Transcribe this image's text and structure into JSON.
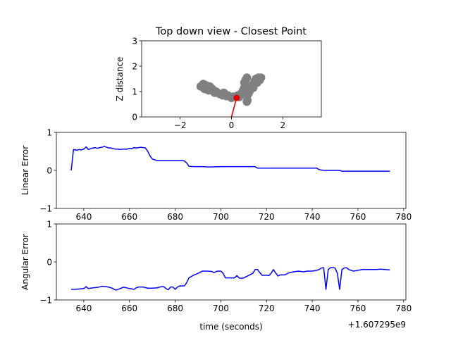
{
  "colors": {
    "trace": "#0000ff",
    "point_cloud": "#808080",
    "closest_point": "#e00000",
    "axes": "#000000",
    "background": "#ffffff"
  },
  "chart_data": [
    {
      "type": "scatter",
      "title": "Top down view - Closest Point",
      "xlabel": "",
      "ylabel": "Z distance",
      "xlim": [
        -3.5,
        3.5
      ],
      "ylim": [
        0,
        3
      ],
      "xticks": [
        -2,
        0,
        2
      ],
      "yticks": [
        0,
        1,
        2,
        3
      ],
      "xtick_labels": [
        "−2",
        "0",
        "2"
      ],
      "ytick_labels": [
        "0",
        "1",
        "2",
        "3"
      ],
      "grid": false,
      "series": [
        {
          "color": "#808080",
          "marker": "o",
          "points": [
            [
              -1.2,
              1.2
            ],
            [
              -1.1,
              1.3
            ],
            [
              -1.0,
              1.25
            ],
            [
              -0.95,
              1.15
            ],
            [
              -0.9,
              1.05
            ],
            [
              -1.05,
              1.1
            ],
            [
              -0.85,
              1.2
            ],
            [
              -0.75,
              1.1
            ],
            [
              -0.7,
              1.0
            ],
            [
              -0.65,
              0.95
            ],
            [
              -0.55,
              0.95
            ],
            [
              -0.45,
              0.9
            ],
            [
              -0.35,
              0.85
            ],
            [
              -0.25,
              0.88
            ],
            [
              -0.3,
              0.95
            ],
            [
              -0.15,
              0.85
            ],
            [
              -0.05,
              0.8
            ],
            [
              0.0,
              0.75
            ],
            [
              0.05,
              0.8
            ],
            [
              0.15,
              0.8
            ],
            [
              0.25,
              0.85
            ],
            [
              0.3,
              0.78
            ],
            [
              0.35,
              0.85
            ],
            [
              0.4,
              0.95
            ],
            [
              0.45,
              1.05
            ],
            [
              0.5,
              1.15
            ],
            [
              0.55,
              1.25
            ],
            [
              0.5,
              1.35
            ],
            [
              0.55,
              1.45
            ],
            [
              0.6,
              1.55
            ],
            [
              0.55,
              1.1
            ],
            [
              0.6,
              1.0
            ],
            [
              0.65,
              0.9
            ],
            [
              0.7,
              1.0
            ],
            [
              0.75,
              1.1
            ],
            [
              0.8,
              1.2
            ],
            [
              0.85,
              1.3
            ],
            [
              0.9,
              1.4
            ],
            [
              0.95,
              1.5
            ],
            [
              1.05,
              1.55
            ],
            [
              1.15,
              1.55
            ],
            [
              1.1,
              1.45
            ],
            [
              1.0,
              1.35
            ],
            [
              0.85,
              1.15
            ],
            [
              0.6,
              0.6
            ],
            [
              0.62,
              0.65
            ],
            [
              -0.2,
              0.82
            ],
            [
              -0.6,
              1.0
            ],
            [
              -0.8,
              1.15
            ],
            [
              0.4,
              0.9
            ]
          ]
        }
      ],
      "closest_point": {
        "x": 0.2,
        "y": 0.75,
        "color": "#e00000"
      },
      "origin_line": {
        "x0": 0.0,
        "y0": 0.0,
        "x1": 0.2,
        "y1": 0.75,
        "color": "#e00000"
      }
    },
    {
      "type": "line",
      "title": "",
      "xlabel": "",
      "ylabel": "Linear Error",
      "xlim": [
        628,
        781
      ],
      "ylim": [
        -1,
        1
      ],
      "xticks": [
        640,
        660,
        680,
        700,
        720,
        740,
        760,
        780
      ],
      "yticks": [
        -1,
        0,
        1
      ],
      "xtick_labels": [
        "640",
        "660",
        "680",
        "700",
        "720",
        "740",
        "760",
        "780"
      ],
      "ytick_labels": [
        "−1",
        "0",
        "1"
      ],
      "grid": false,
      "series": [
        {
          "color": "#0000ff",
          "x": [
            634.5,
            635.5,
            637,
            638,
            639,
            640,
            641,
            642,
            643,
            644,
            645,
            646,
            647,
            648,
            649,
            650,
            651,
            652,
            653,
            654,
            655,
            656,
            657,
            658,
            659,
            660,
            661,
            662,
            663,
            664,
            665,
            666,
            667,
            668,
            669,
            670,
            672,
            675,
            678,
            680,
            682,
            683,
            684,
            685,
            686,
            688,
            690,
            692,
            695,
            700,
            705,
            710,
            714,
            715,
            716,
            720,
            725,
            730,
            735,
            740,
            742,
            743,
            745,
            750,
            752,
            753,
            755,
            760,
            765,
            770,
            774
          ],
          "values": [
            0.0,
            0.55,
            0.53,
            0.55,
            0.54,
            0.56,
            0.62,
            0.55,
            0.57,
            0.59,
            0.6,
            0.58,
            0.6,
            0.61,
            0.63,
            0.61,
            0.59,
            0.59,
            0.57,
            0.56,
            0.56,
            0.55,
            0.56,
            0.56,
            0.56,
            0.58,
            0.57,
            0.6,
            0.59,
            0.6,
            0.61,
            0.6,
            0.59,
            0.5,
            0.38,
            0.3,
            0.26,
            0.26,
            0.26,
            0.26,
            0.26,
            0.26,
            0.25,
            0.2,
            0.11,
            0.1,
            0.1,
            0.1,
            0.09,
            0.1,
            0.1,
            0.1,
            0.1,
            0.1,
            0.06,
            0.06,
            0.06,
            0.06,
            0.06,
            0.06,
            0.06,
            0.02,
            0.0,
            0.0,
            0.0,
            -0.02,
            -0.02,
            -0.02,
            -0.02,
            -0.02,
            -0.02
          ]
        }
      ]
    },
    {
      "type": "line",
      "title": "",
      "xlabel": "time (seconds)",
      "ylabel": "Angular Error",
      "offset_text": "+1.607295e9",
      "xlim": [
        628,
        781
      ],
      "ylim": [
        -1,
        1
      ],
      "xticks": [
        640,
        660,
        680,
        700,
        720,
        740,
        760,
        780
      ],
      "yticks": [
        -1,
        0,
        1
      ],
      "xtick_labels": [
        "640",
        "660",
        "680",
        "700",
        "720",
        "740",
        "760",
        "780"
      ],
      "ytick_labels": [
        "−1",
        "0",
        "1"
      ],
      "grid": false,
      "series": [
        {
          "color": "#0000ff",
          "x": [
            634.5,
            636,
            638,
            640,
            641,
            642,
            644,
            646,
            648,
            650,
            652,
            654,
            656,
            657,
            658,
            660,
            662,
            663,
            664,
            666,
            668,
            670,
            672,
            674,
            675,
            676,
            677,
            678,
            679,
            680,
            681,
            682,
            683,
            684,
            685,
            686,
            688,
            690,
            692,
            694,
            696,
            697,
            698,
            699,
            700,
            701,
            702,
            704,
            706,
            707,
            708,
            709,
            710,
            712,
            714,
            715,
            716,
            718,
            719,
            720,
            721,
            722,
            723,
            724,
            725,
            726,
            728,
            730,
            732,
            734,
            736,
            738,
            740,
            742,
            743,
            744,
            745,
            746,
            747,
            748,
            749,
            750,
            751,
            752,
            753,
            754,
            755,
            756,
            757,
            758,
            760,
            762,
            764,
            766,
            768,
            770,
            772,
            774
          ],
          "values": [
            -0.72,
            -0.72,
            -0.71,
            -0.7,
            -0.65,
            -0.7,
            -0.68,
            -0.67,
            -0.64,
            -0.65,
            -0.68,
            -0.74,
            -0.7,
            -0.67,
            -0.67,
            -0.7,
            -0.72,
            -0.68,
            -0.66,
            -0.66,
            -0.69,
            -0.69,
            -0.68,
            -0.65,
            -0.65,
            -0.7,
            -0.73,
            -0.66,
            -0.66,
            -0.72,
            -0.66,
            -0.63,
            -0.63,
            -0.63,
            -0.55,
            -0.42,
            -0.35,
            -0.3,
            -0.24,
            -0.24,
            -0.25,
            -0.28,
            -0.25,
            -0.24,
            -0.24,
            -0.3,
            -0.42,
            -0.42,
            -0.42,
            -0.36,
            -0.42,
            -0.43,
            -0.42,
            -0.36,
            -0.3,
            -0.2,
            -0.2,
            -0.35,
            -0.35,
            -0.35,
            -0.36,
            -0.3,
            -0.2,
            -0.29,
            -0.37,
            -0.34,
            -0.34,
            -0.28,
            -0.26,
            -0.24,
            -0.26,
            -0.24,
            -0.24,
            -0.22,
            -0.2,
            -0.16,
            -0.15,
            -0.72,
            -0.2,
            -0.15,
            -0.15,
            -0.16,
            -0.3,
            -0.72,
            -0.2,
            -0.16,
            -0.15,
            -0.2,
            -0.22,
            -0.24,
            -0.22,
            -0.2,
            -0.2,
            -0.2,
            -0.2,
            -0.19,
            -0.2,
            -0.21
          ]
        }
      ]
    }
  ]
}
